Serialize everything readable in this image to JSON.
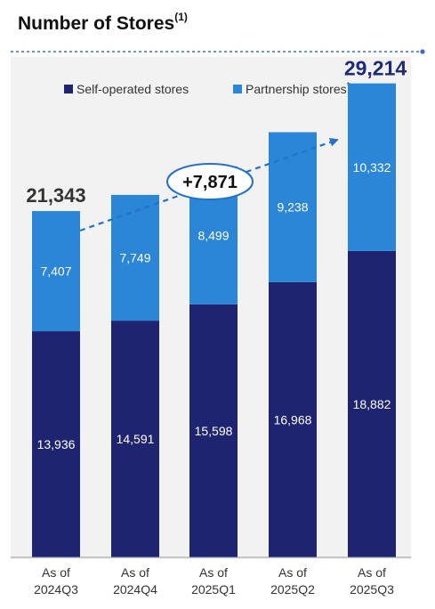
{
  "title": "Number of Stores",
  "title_note": "(1)",
  "colors": {
    "self_operated": "#1f2470",
    "partnership": "#2b86d8",
    "dashed": "#2472c8",
    "total_last": "#1f2a78",
    "total_first": "#333333",
    "panel": "#f2f2f2"
  },
  "chart_data": {
    "type": "bar",
    "stacked": true,
    "categories": [
      [
        "As of",
        "2024Q3"
      ],
      [
        "As of",
        "2024Q4"
      ],
      [
        "As of",
        "2025Q1"
      ],
      [
        "As of",
        "2025Q2"
      ],
      [
        "As of",
        "2025Q3"
      ]
    ],
    "series": [
      {
        "name": "Self-operated stores",
        "values": [
          13936,
          14591,
          15598,
          16968,
          18882
        ]
      },
      {
        "name": "Partnership stores",
        "name_mark": "*",
        "values": [
          7407,
          7749,
          8499,
          9238,
          10332
        ]
      }
    ],
    "value_labels": {
      "self": [
        "13,936",
        "14,591",
        "15,598",
        "16,968",
        "18,882"
      ],
      "partner": [
        "7,407",
        "7,749",
        "8,499",
        "9,238",
        "10,332"
      ]
    },
    "totals": {
      "first": "21,343",
      "last": "29,214"
    },
    "growth_label": "+7,871",
    "ylim": [
      0,
      31500
    ],
    "legend_position": "top",
    "grid": false
  }
}
